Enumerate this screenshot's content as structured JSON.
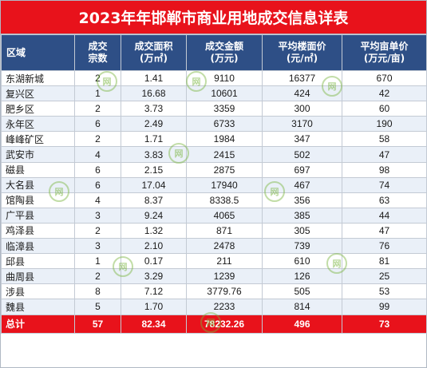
{
  "title": "2023年年邯郸市商业用地成交信息详表",
  "header": {
    "region": "区域",
    "deals": [
      "成交",
      "宗数"
    ],
    "area": [
      "成交面积",
      "(万㎡)"
    ],
    "amount": [
      "成交金额",
      "(万元)"
    ],
    "floor_price": [
      "平均楼面价",
      "(元/㎡)"
    ],
    "mu_price": [
      "平均亩单价",
      "(万元/亩)"
    ]
  },
  "rows": [
    {
      "region": "东湖新城",
      "deals": "2",
      "area": "1.41",
      "amount": "9110",
      "floor_price": "16377",
      "mu_price": "670"
    },
    {
      "region": "复兴区",
      "deals": "1",
      "area": "16.68",
      "amount": "10601",
      "floor_price": "424",
      "mu_price": "42"
    },
    {
      "region": "肥乡区",
      "deals": "2",
      "area": "3.73",
      "amount": "3359",
      "floor_price": "300",
      "mu_price": "60"
    },
    {
      "region": "永年区",
      "deals": "6",
      "area": "2.49",
      "amount": "6733",
      "floor_price": "3170",
      "mu_price": "190"
    },
    {
      "region": "峰峰矿区",
      "deals": "2",
      "area": "1.71",
      "amount": "1984",
      "floor_price": "347",
      "mu_price": "58"
    },
    {
      "region": "武安市",
      "deals": "4",
      "area": "3.83",
      "amount": "2415",
      "floor_price": "502",
      "mu_price": "47"
    },
    {
      "region": "磁县",
      "deals": "6",
      "area": "2.15",
      "amount": "2875",
      "floor_price": "697",
      "mu_price": "98"
    },
    {
      "region": "大名县",
      "deals": "6",
      "area": "17.04",
      "amount": "17940",
      "floor_price": "467",
      "mu_price": "74"
    },
    {
      "region": "馆陶县",
      "deals": "4",
      "area": "8.37",
      "amount": "8338.5",
      "floor_price": "356",
      "mu_price": "63"
    },
    {
      "region": "广平县",
      "deals": "3",
      "area": "9.24",
      "amount": "4065",
      "floor_price": "385",
      "mu_price": "44"
    },
    {
      "region": "鸡泽县",
      "deals": "2",
      "area": "1.32",
      "amount": "871",
      "floor_price": "305",
      "mu_price": "47"
    },
    {
      "region": "临漳县",
      "deals": "3",
      "area": "2.10",
      "amount": "2478",
      "floor_price": "739",
      "mu_price": "76"
    },
    {
      "region": "邱县",
      "deals": "1",
      "area": "0.17",
      "amount": "211",
      "floor_price": "610",
      "mu_price": "81"
    },
    {
      "region": "曲周县",
      "deals": "2",
      "area": "3.29",
      "amount": "1239",
      "floor_price": "126",
      "mu_price": "25"
    },
    {
      "region": "涉县",
      "deals": "8",
      "area": "7.12",
      "amount": "3779.76",
      "floor_price": "505",
      "mu_price": "53"
    },
    {
      "region": "魏县",
      "deals": "5",
      "area": "1.70",
      "amount": "2233",
      "floor_price": "814",
      "mu_price": "99"
    }
  ],
  "total": {
    "region": "总计",
    "deals": "57",
    "area": "82.34",
    "amount": "78232.26",
    "floor_price": "496",
    "mu_price": "73"
  },
  "colors": {
    "title_bg": "#e8121b",
    "header_bg": "#2e4f86",
    "stripe": "#eaf0f8",
    "watermark": "#78b43c"
  },
  "watermark_icon": "logo-stamp-icon"
}
